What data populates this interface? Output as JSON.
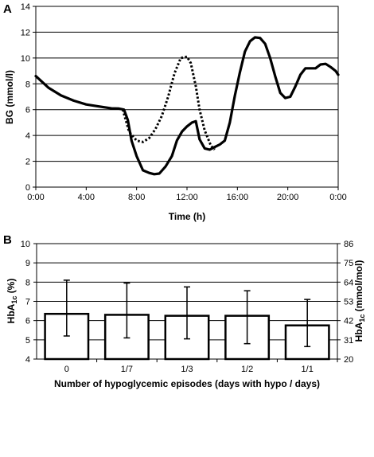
{
  "chart_data": [
    {
      "panel_label": "A",
      "type": "line",
      "xlabel": "Time (h)",
      "ylabel": "BG (mmol/l)",
      "ylim": [
        0,
        14
      ],
      "y_ticks": [
        0,
        2,
        4,
        6,
        8,
        10,
        12,
        14
      ],
      "xlim": [
        0,
        24
      ],
      "x_ticks": [
        0,
        4,
        8,
        12,
        16,
        20,
        24
      ],
      "x_tick_labels": [
        "0:00",
        "4:00",
        "8:00",
        "12:00",
        "16:00",
        "20:00",
        "0:00"
      ],
      "grid": true,
      "series": [
        {
          "style": "solid",
          "x": [
            0,
            1,
            2,
            3,
            4,
            5,
            6,
            6.6,
            7,
            7.3,
            7.6,
            8,
            8.5,
            9,
            9.4,
            9.8,
            10.3,
            10.8,
            11.2,
            11.6,
            12,
            12.4,
            12.7,
            13,
            13.4,
            13.8,
            14.2,
            14.6,
            15,
            15.4,
            15.8,
            16.2,
            16.6,
            17,
            17.4,
            17.8,
            18.2,
            18.6,
            19,
            19.4,
            19.8,
            20.2,
            20.6,
            21,
            21.4,
            21.8,
            22.2,
            22.6,
            23,
            23.4,
            23.8,
            24
          ],
          "y": [
            8.6,
            7.7,
            7.1,
            6.7,
            6.4,
            6.25,
            6.1,
            6.08,
            6.0,
            5.2,
            3.6,
            2.4,
            1.3,
            1.1,
            1.0,
            1.05,
            1.6,
            2.4,
            3.6,
            4.3,
            4.7,
            5.0,
            5.1,
            3.7,
            3.0,
            2.9,
            3.1,
            3.3,
            3.6,
            5.0,
            7.1,
            8.9,
            10.5,
            11.3,
            11.6,
            11.55,
            11.1,
            10.0,
            8.6,
            7.3,
            6.9,
            7.0,
            7.8,
            8.7,
            9.2,
            9.2,
            9.2,
            9.5,
            9.55,
            9.3,
            9.0,
            8.7
          ]
        },
        {
          "style": "dotted",
          "x": [
            6.9,
            7.4,
            8,
            8.5,
            9,
            9.5,
            10,
            10.5,
            11,
            11.5,
            12,
            12.3,
            12.7,
            13,
            13.4,
            13.9,
            14.2
          ],
          "y": [
            6.0,
            4.3,
            3.6,
            3.5,
            3.8,
            4.5,
            5.5,
            7.0,
            8.8,
            10.0,
            10.1,
            9.6,
            7.8,
            6.0,
            4.4,
            3.2,
            2.9
          ]
        }
      ]
    },
    {
      "panel_label": "B",
      "type": "bar",
      "xlabel": "Number of hypoglycemic episodes (days with hypo / days)",
      "ylabel_main": "HbA",
      "ylabel_sub": "1c",
      "ylabel_unit": " (%)",
      "y2label_main": "HbA",
      "y2label_sub": "1c",
      "y2label_unit": " (mmol/mol)",
      "categories": [
        "0",
        "1/7",
        "1/3",
        "1/2",
        "1/1"
      ],
      "values": [
        6.35,
        6.3,
        6.25,
        6.25,
        5.75
      ],
      "error_upper": [
        8.1,
        7.95,
        7.75,
        7.55,
        7.1
      ],
      "error_lower": [
        5.2,
        5.1,
        5.05,
        4.8,
        4.65
      ],
      "ylim": [
        4,
        10
      ],
      "y_ticks": [
        4,
        5,
        6,
        7,
        8,
        9,
        10
      ],
      "y2_tick_labels": [
        "20",
        "31",
        "42",
        "53",
        "64",
        "75",
        "86"
      ],
      "grid": true
    }
  ]
}
